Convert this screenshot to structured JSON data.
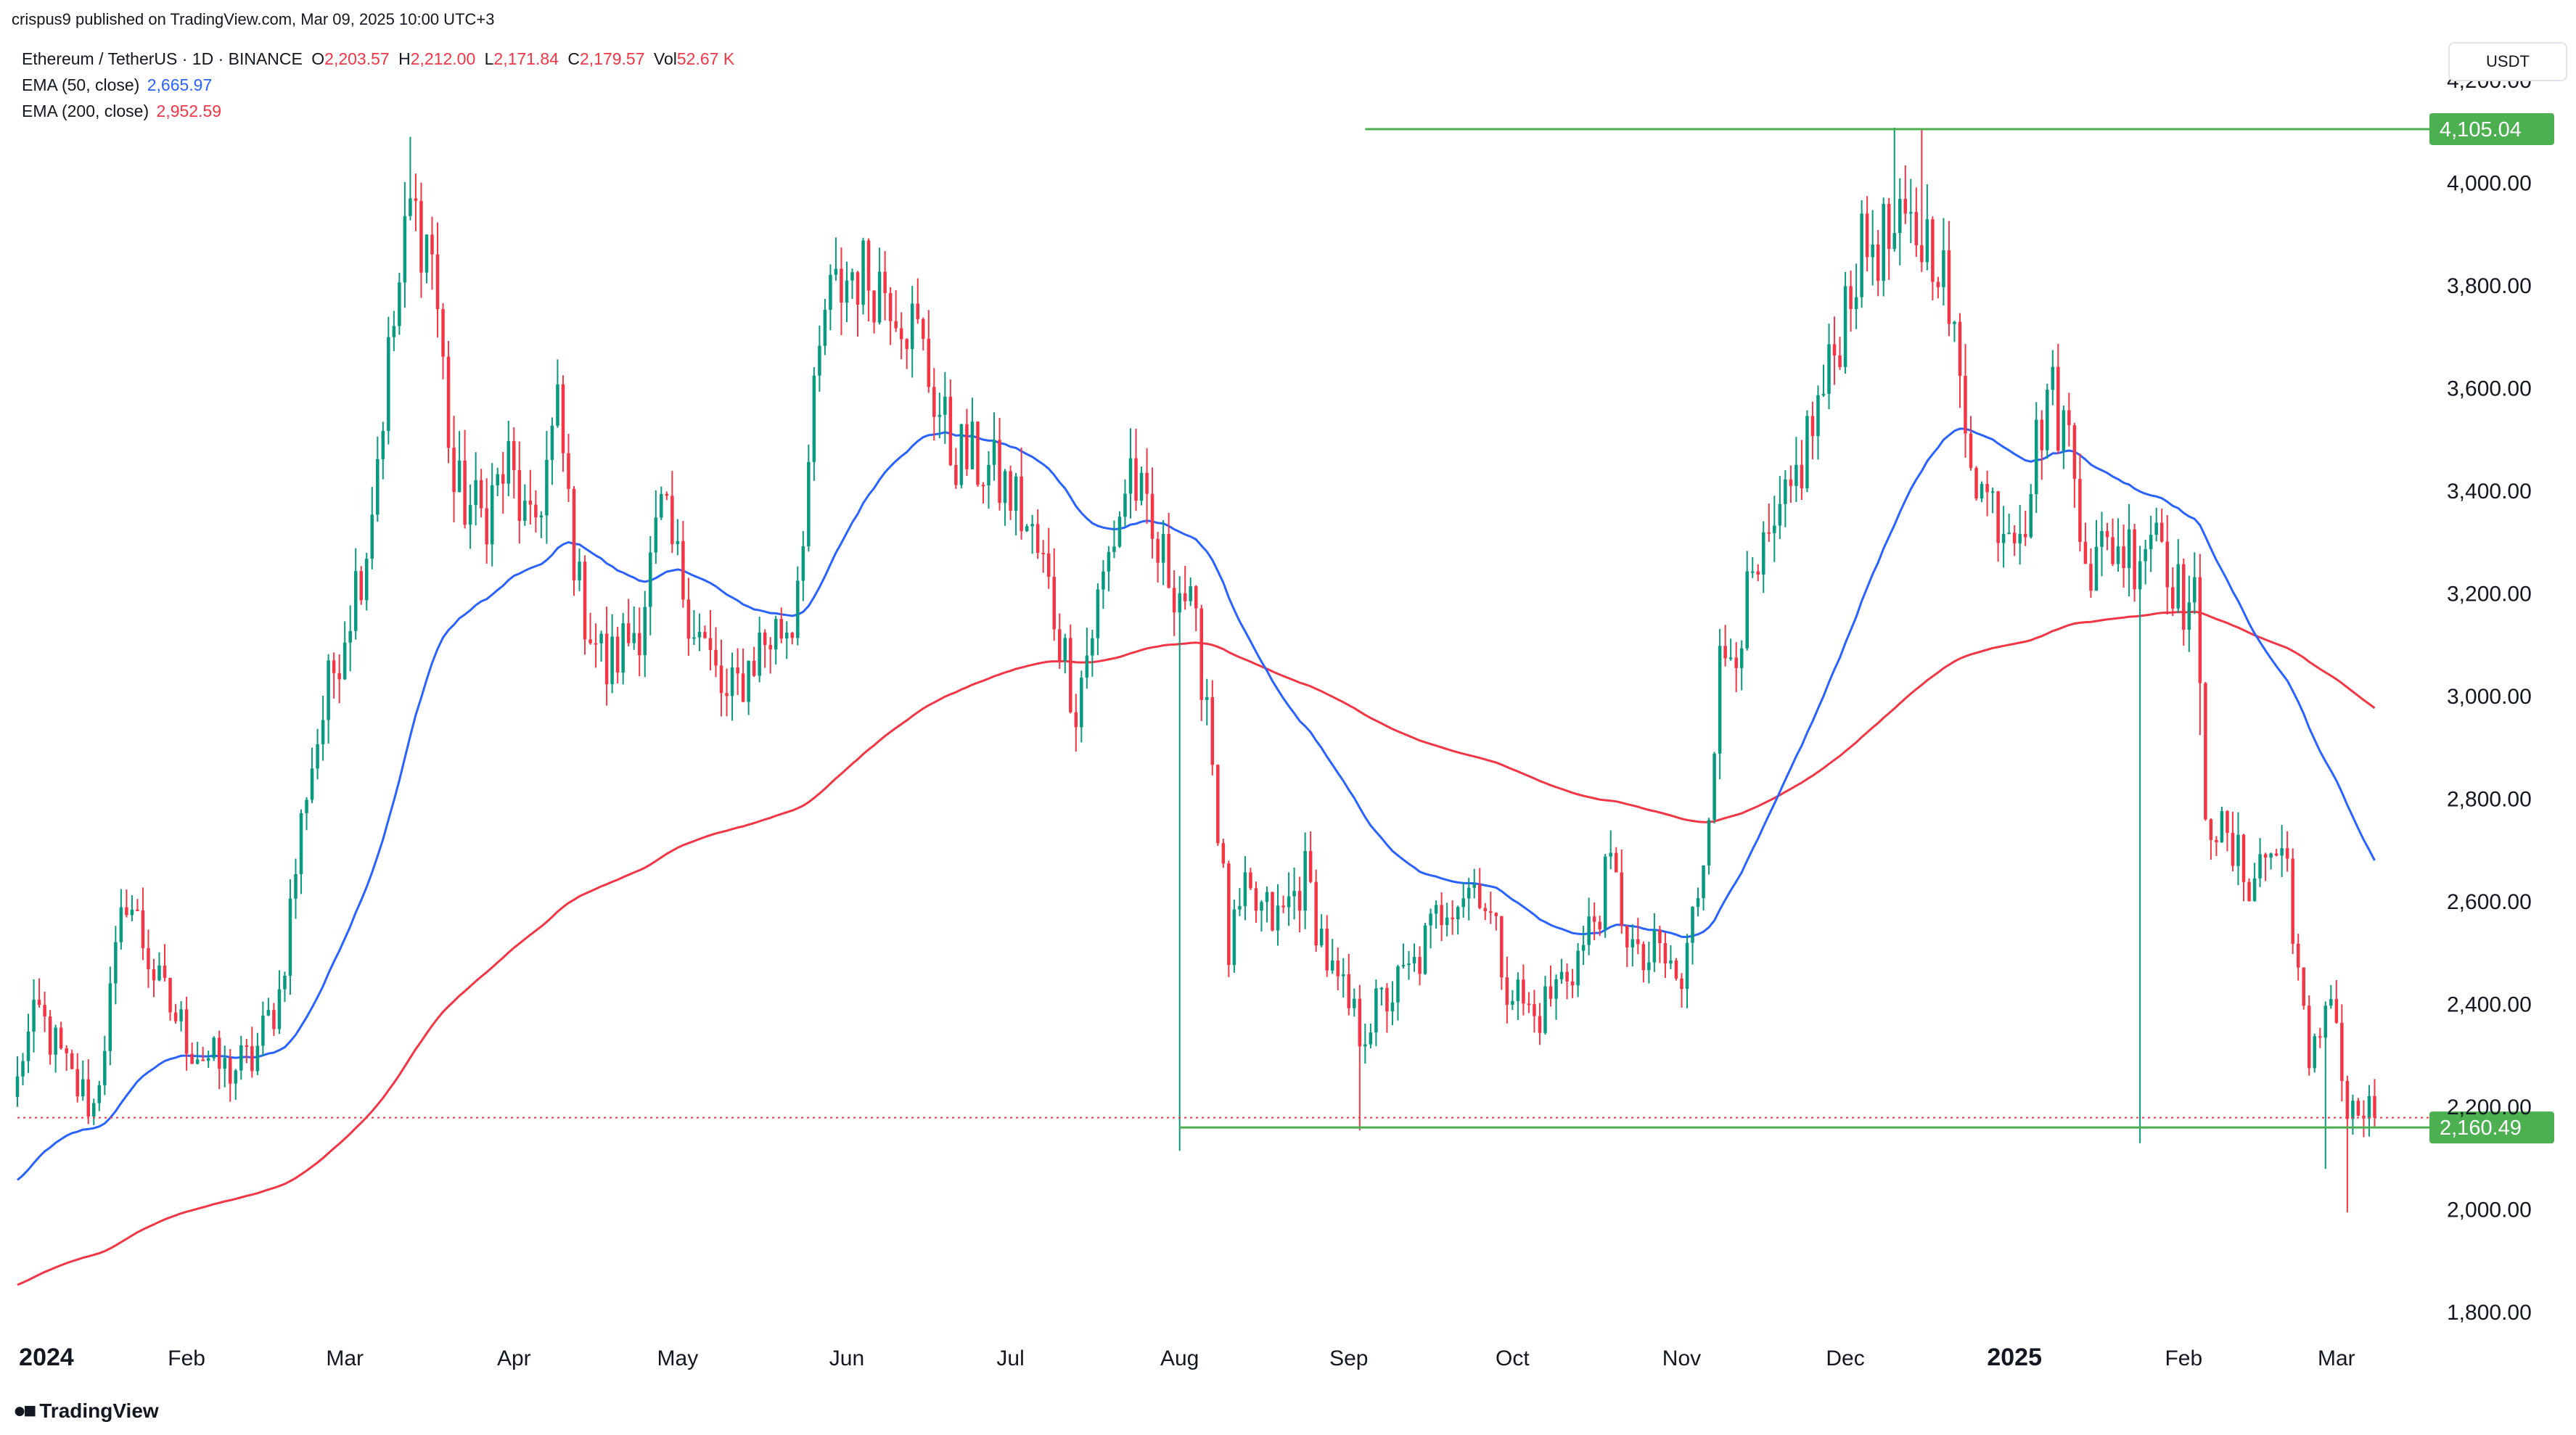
{
  "header": {
    "publisher": "crispus9 published on TradingView.com, Mar 09, 2025 10:00 UTC+3",
    "symbol": "Ethereum / TetherUS · 1D · BINANCE",
    "ohlc": {
      "open_label": "O",
      "open": "2,203.57",
      "high_label": "H",
      "high": "2,212.00",
      "low_label": "L",
      "low": "2,171.84",
      "close_label": "C",
      "close": "2,179.57",
      "vol_label": "Vol",
      "vol": "52.67 K"
    },
    "ema50": {
      "label": "EMA (50, close)",
      "value": "2,665.97"
    },
    "ema200": {
      "label": "EMA (200, close)",
      "value": "2,952.59"
    }
  },
  "currency": "USDT",
  "footer": {
    "brand": "TradingView"
  },
  "colors": {
    "up": "#089981",
    "down": "#f23645",
    "ema50": "#2962ff",
    "ema200": "#f23645",
    "level": "#4caf50",
    "badge_text": "#ffffff",
    "text": "#131722",
    "grid_dot": "#f23645"
  },
  "chart_data": {
    "type": "candlestick",
    "title": "Ethereum / TetherUS · 1D · BINANCE",
    "ylim": [
      1700,
      4300
    ],
    "y_ticks": [
      "1,800.00",
      "2,000.00",
      "2,200.00",
      "2,400.00",
      "2,600.00",
      "2,800.00",
      "3,000.00",
      "3,200.00",
      "3,400.00",
      "3,600.00",
      "3,800.00",
      "4,000.00",
      "4,200.00"
    ],
    "x_ticks": [
      {
        "label": "2024",
        "bold": true,
        "day": 0
      },
      {
        "label": "Feb",
        "bold": false,
        "day": 31
      },
      {
        "label": "Mar",
        "bold": false,
        "day": 60
      },
      {
        "label": "Apr",
        "bold": false,
        "day": 91
      },
      {
        "label": "May",
        "bold": false,
        "day": 121
      },
      {
        "label": "Jun",
        "bold": false,
        "day": 152
      },
      {
        "label": "Jul",
        "bold": false,
        "day": 182
      },
      {
        "label": "Aug",
        "bold": false,
        "day": 213
      },
      {
        "label": "Sep",
        "bold": false,
        "day": 244
      },
      {
        "label": "Oct",
        "bold": false,
        "day": 274
      },
      {
        "label": "Nov",
        "bold": false,
        "day": 305
      },
      {
        "label": "Dec",
        "bold": false,
        "day": 335
      },
      {
        "label": "2025",
        "bold": true,
        "day": 366
      },
      {
        "label": "Feb",
        "bold": false,
        "day": 397
      },
      {
        "label": "Mar",
        "bold": false,
        "day": 425
      }
    ],
    "total_days": 433,
    "price_anchors": [
      [
        -2,
        2240
      ],
      [
        4,
        2380
      ],
      [
        10,
        2250
      ],
      [
        14,
        2200
      ],
      [
        20,
        2620
      ],
      [
        26,
        2430
      ],
      [
        32,
        2320
      ],
      [
        38,
        2270
      ],
      [
        43,
        2290
      ],
      [
        48,
        2420
      ],
      [
        53,
        2830
      ],
      [
        59,
        3100
      ],
      [
        64,
        3300
      ],
      [
        68,
        3650
      ],
      [
        72,
        3950
      ],
      [
        76,
        3870
      ],
      [
        80,
        3400
      ],
      [
        85,
        3350
      ],
      [
        90,
        3450
      ],
      [
        94,
        3300
      ],
      [
        99,
        3550
      ],
      [
        103,
        3200
      ],
      [
        108,
        3050
      ],
      [
        114,
        3150
      ],
      [
        118,
        3350
      ],
      [
        124,
        3150
      ],
      [
        130,
        2980
      ],
      [
        136,
        3100
      ],
      [
        142,
        3150
      ],
      [
        148,
        3750
      ],
      [
        153,
        3830
      ],
      [
        160,
        3800
      ],
      [
        165,
        3700
      ],
      [
        171,
        3480
      ],
      [
        177,
        3450
      ],
      [
        183,
        3380
      ],
      [
        188,
        3250
      ],
      [
        194,
        2990
      ],
      [
        198,
        3180
      ],
      [
        204,
        3450
      ],
      [
        208,
        3290
      ],
      [
        214,
        3200
      ],
      [
        218,
        3010
      ],
      [
        222,
        2500
      ],
      [
        225,
        2600
      ],
      [
        231,
        2560
      ],
      [
        236,
        2650
      ],
      [
        241,
        2450
      ],
      [
        246,
        2350
      ],
      [
        250,
        2400
      ],
      [
        256,
        2470
      ],
      [
        262,
        2610
      ],
      [
        268,
        2640
      ],
      [
        273,
        2450
      ],
      [
        278,
        2370
      ],
      [
        283,
        2450
      ],
      [
        287,
        2510
      ],
      [
        292,
        2660
      ],
      [
        297,
        2470
      ],
      [
        301,
        2500
      ],
      [
        305,
        2430
      ],
      [
        309,
        2700
      ],
      [
        312,
        3050
      ],
      [
        316,
        3150
      ],
      [
        320,
        3250
      ],
      [
        324,
        3350
      ],
      [
        328,
        3500
      ],
      [
        332,
        3620
      ],
      [
        336,
        3820
      ],
      [
        340,
        3890
      ],
      [
        344,
        3880
      ],
      [
        348,
        3900
      ],
      [
        352,
        3880
      ],
      [
        356,
        3600
      ],
      [
        360,
        3400
      ],
      [
        364,
        3350
      ],
      [
        368,
        3370
      ],
      [
        372,
        3600
      ],
      [
        376,
        3500
      ],
      [
        380,
        3250
      ],
      [
        384,
        3300
      ],
      [
        388,
        3280
      ],
      [
        392,
        3350
      ],
      [
        396,
        3200
      ],
      [
        399,
        3170
      ],
      [
        401,
        2800
      ],
      [
        405,
        2700
      ],
      [
        409,
        2650
      ],
      [
        413,
        2700
      ],
      [
        416,
        2680
      ],
      [
        420,
        2250
      ],
      [
        424,
        2450
      ],
      [
        427,
        2180
      ],
      [
        431,
        2190
      ]
    ],
    "spikes": [
      {
        "day": 213,
        "low": 2115
      },
      {
        "day": 246,
        "low": 2155
      },
      {
        "day": 389,
        "low": 2130
      },
      {
        "day": 400,
        "low": 2925
      },
      {
        "day": 423,
        "low": 2080
      },
      {
        "day": 427,
        "low": 1995
      },
      {
        "day": 72,
        "high": 4090
      },
      {
        "day": 344,
        "high": 4108
      },
      {
        "day": 349,
        "high": 4105
      }
    ],
    "series": [
      {
        "name": "EMA (50, close)",
        "period": 50,
        "color": "#2962ff"
      },
      {
        "name": "EMA (200, close)",
        "period": 200,
        "color": "#f23645",
        "seed": 1850
      }
    ],
    "resistance": {
      "price": 4105.04,
      "label": "4,105.04",
      "from_day": 247
    },
    "support": {
      "price": 2160.49,
      "label": "2,160.49",
      "from_day": 213
    },
    "last_price": {
      "price": 2179.57
    }
  }
}
